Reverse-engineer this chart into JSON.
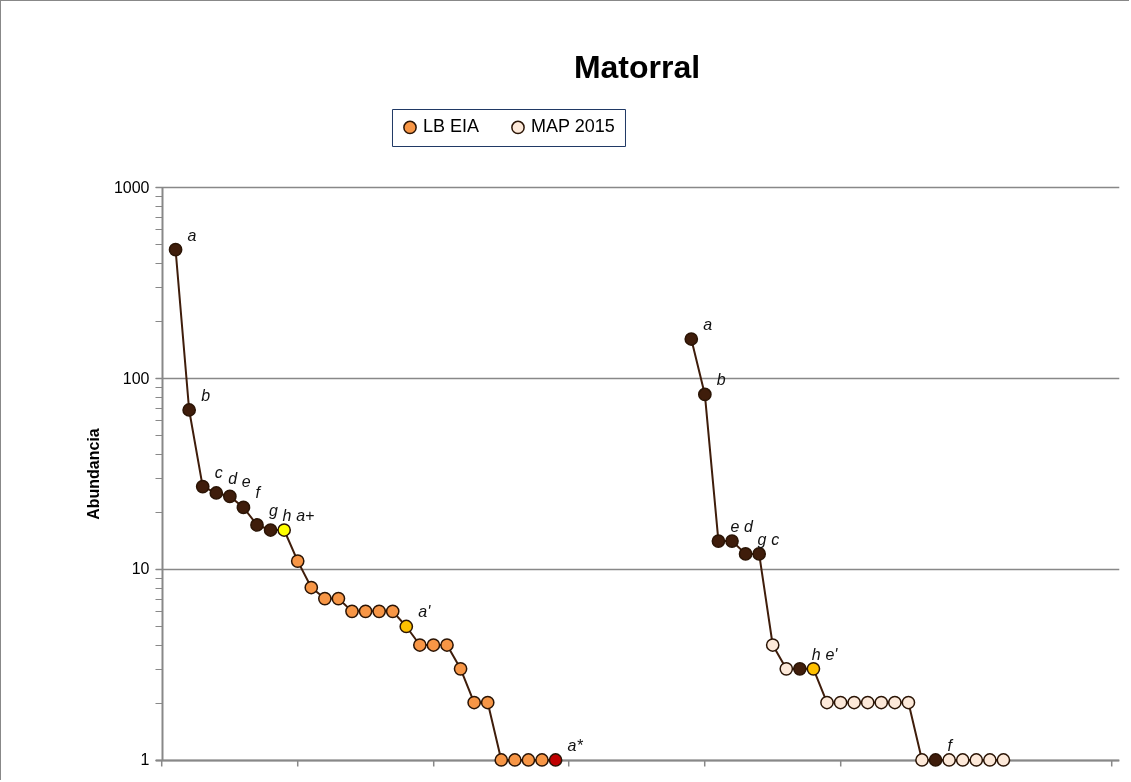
{
  "chart_data": {
    "type": "line",
    "title": "Matorral",
    "ylabel": "Abundancia",
    "log": true,
    "grid": "y",
    "legend": "top",
    "marker": "circle",
    "tick_labels": "y",
    "ylim": [
      1,
      1000
    ],
    "yticks": [
      1,
      {
        "value": 2,
        "label": null
      },
      {
        "value": 3,
        "label": null
      },
      {
        "value": 4,
        "label": null
      },
      {
        "value": 5,
        "label": null
      },
      {
        "value": 6,
        "label": null
      },
      {
        "value": 7,
        "label": null
      },
      {
        "value": 8,
        "label": null
      },
      {
        "value": 9,
        "label": null
      },
      10,
      {
        "value": 20,
        "label": null
      },
      {
        "value": 30,
        "label": null
      },
      {
        "value": 40,
        "label": null
      },
      {
        "value": 50,
        "label": null
      },
      {
        "value": 60,
        "label": null
      },
      {
        "value": 70,
        "label": null
      },
      {
        "value": 80,
        "label": null
      },
      {
        "value": 90,
        "label": null
      },
      100,
      {
        "value": 200,
        "label": null
      },
      {
        "value": 300,
        "label": null
      },
      {
        "value": 400,
        "label": null
      },
      {
        "value": 500,
        "label": null
      },
      {
        "value": 600,
        "label": null
      },
      {
        "value": 700,
        "label": null
      },
      {
        "value": 800,
        "label": null
      },
      {
        "value": 900,
        "label": null
      },
      1000
    ],
    "categories": [
      null,
      null,
      null,
      null,
      null,
      null,
      null,
      null,
      null,
      null,
      null,
      null,
      null,
      null,
      null,
      null,
      null,
      null,
      null,
      null,
      null,
      null,
      null,
      null,
      null,
      null,
      null,
      null,
      null,
      null,
      null,
      null,
      null,
      null,
      null,
      null,
      null,
      null,
      null,
      null,
      null,
      null,
      null,
      null,
      null,
      null,
      null,
      null,
      null,
      null,
      null,
      null,
      null,
      null,
      null,
      null,
      null,
      null,
      null,
      null,
      null,
      null,
      null,
      null,
      null,
      null,
      null,
      null,
      null,
      null,
      null
    ],
    "series": [
      {
        "name": "LB EIA",
        "color": "#3f1d0b",
        "values": [
          null,
          470,
          68,
          27,
          25,
          24,
          21,
          17,
          16,
          16,
          11,
          8,
          7,
          7,
          6,
          6,
          6,
          6,
          5,
          4,
          4,
          4,
          3,
          2,
          2,
          1,
          1,
          1,
          1,
          1,
          null,
          null,
          null,
          null,
          null,
          null,
          null,
          null,
          null,
          null,
          null,
          null,
          null,
          null,
          null,
          null,
          null,
          null,
          null,
          null,
          null,
          null,
          null,
          null,
          null,
          null,
          null,
          null,
          null,
          null,
          null,
          null,
          null,
          null,
          null,
          null,
          null,
          null,
          null,
          null,
          null
        ],
        "colors": [
          null,
          "#3f1d0b",
          "#3f1d0b",
          "#3f1d0b",
          "#3f1d0b",
          "#3f1d0b",
          "#3f1d0b",
          "#3f1d0b",
          "#3f1d0b",
          "#ffff00",
          "#f79646",
          "#f79646",
          "#f79646",
          "#f79646",
          "#f79646",
          "#f79646",
          "#f79646",
          "#f79646",
          "#ffc000",
          "#f79646",
          "#f79646",
          "#f79646",
          "#f79646",
          "#f79646",
          "#f79646",
          "#f79646",
          "#f79646",
          "#f79646",
          "#f79646",
          "#c00000",
          null,
          null,
          null,
          null,
          null,
          null,
          null,
          null,
          null,
          null,
          null,
          null,
          null,
          null,
          null,
          null,
          null,
          null,
          null,
          null,
          null,
          null,
          null,
          null,
          null,
          null,
          null,
          null,
          null,
          null,
          null,
          null,
          null,
          null,
          null,
          null,
          null,
          null,
          null,
          null,
          null
        ],
        "value_labels": [
          null,
          "a",
          "b",
          "c",
          "d",
          "e",
          "f",
          "g",
          "h",
          "a+",
          null,
          null,
          null,
          null,
          null,
          null,
          null,
          null,
          "a'",
          null,
          null,
          null,
          null,
          null,
          null,
          null,
          null,
          null,
          null,
          "a*",
          null,
          null,
          null,
          null,
          null,
          null,
          null,
          null,
          null,
          null,
          null,
          null,
          null,
          null,
          null,
          null,
          null,
          null,
          null,
          null,
          null,
          null,
          null,
          null,
          null,
          null,
          null,
          null,
          null,
          null,
          null,
          null,
          null,
          null,
          null,
          null,
          null,
          null,
          null,
          null,
          null
        ]
      },
      {
        "name": "MAP 2015",
        "color": "#3f1d0b",
        "values": [
          null,
          null,
          null,
          null,
          null,
          null,
          null,
          null,
          null,
          null,
          null,
          null,
          null,
          null,
          null,
          null,
          null,
          null,
          null,
          null,
          null,
          null,
          null,
          null,
          null,
          null,
          null,
          null,
          null,
          null,
          null,
          null,
          null,
          null,
          null,
          null,
          null,
          null,
          null,
          160,
          82,
          14,
          14,
          12,
          12,
          4,
          3,
          3,
          3,
          2,
          2,
          2,
          2,
          2,
          2,
          2,
          1,
          1,
          1,
          1,
          1,
          1,
          1,
          null,
          null,
          null,
          null,
          null,
          null,
          null,
          null
        ],
        "colors": [
          null,
          null,
          null,
          null,
          null,
          null,
          null,
          null,
          null,
          null,
          null,
          null,
          null,
          null,
          null,
          null,
          null,
          null,
          null,
          null,
          null,
          null,
          null,
          null,
          null,
          null,
          null,
          null,
          null,
          null,
          null,
          null,
          null,
          null,
          null,
          null,
          null,
          null,
          null,
          "#3f1d0b",
          "#3f1d0b",
          "#3f1d0b",
          "#3f1d0b",
          "#3f1d0b",
          "#3f1d0b",
          "#fde9d9",
          "#fde9d9",
          "#3f1d0b",
          "#ffc000",
          "#fde9d9",
          "#fde9d9",
          "#fde9d9",
          "#fde9d9",
          "#fde9d9",
          "#fde9d9",
          "#fde9d9",
          "#fde9d9",
          "#3f1d0b",
          "#fde9d9",
          "#fde9d9",
          "#fde9d9",
          "#fde9d9",
          "#fde9d9",
          null,
          null,
          null,
          null,
          null,
          null,
          null,
          null
        ],
        "value_labels": [
          null,
          null,
          null,
          null,
          null,
          null,
          null,
          null,
          null,
          null,
          null,
          null,
          null,
          null,
          null,
          null,
          null,
          null,
          null,
          null,
          null,
          null,
          null,
          null,
          null,
          null,
          null,
          null,
          null,
          null,
          null,
          null,
          null,
          null,
          null,
          null,
          null,
          null,
          null,
          "a",
          "b",
          "e",
          "d",
          "g",
          "c",
          null,
          null,
          "h",
          "e'",
          null,
          null,
          null,
          null,
          null,
          null,
          null,
          null,
          "f",
          null,
          null,
          null,
          null,
          null,
          null,
          null,
          null,
          null,
          null,
          null,
          null,
          null
        ]
      }
    ]
  }
}
